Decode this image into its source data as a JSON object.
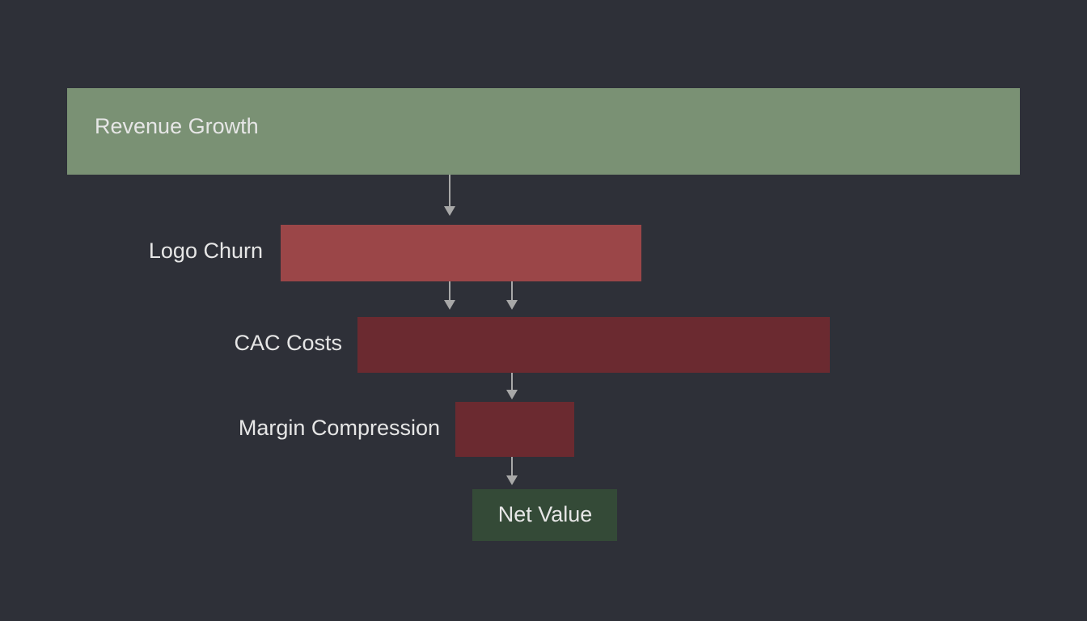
{
  "nodes": [
    {
      "label": "Revenue Growth"
    },
    {
      "label": "Logo Churn"
    },
    {
      "label": "CAC Costs"
    },
    {
      "label": "Margin Compression"
    },
    {
      "label": "Net Value"
    }
  ]
}
